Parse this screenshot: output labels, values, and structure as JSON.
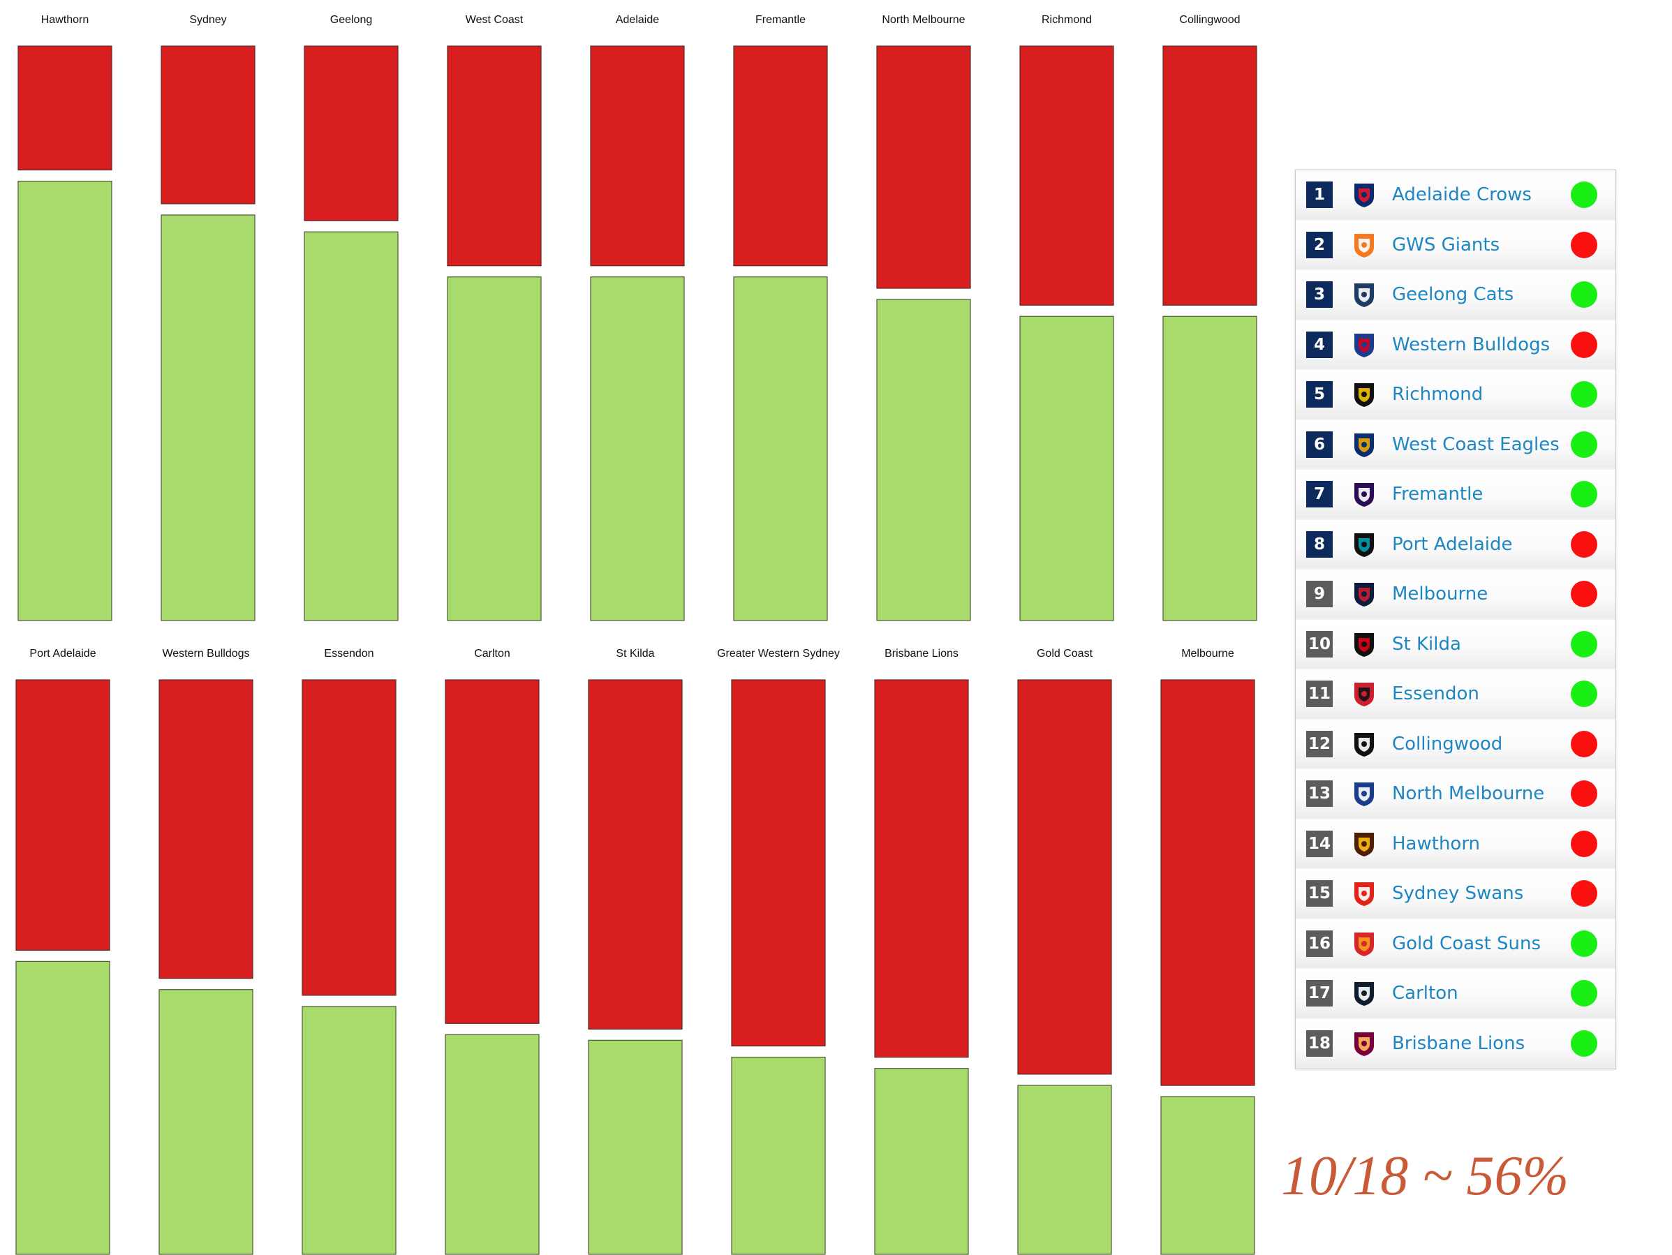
{
  "chart_data": {
    "type": "bar",
    "subtype": "stacked-100-percent",
    "title": "",
    "xlabel": "",
    "ylabel": "",
    "ylim": [
      0,
      100
    ],
    "grid": false,
    "legend": "none",
    "series_colors": {
      "red": "#d81e1e",
      "green": "#a8da6c"
    },
    "categories": [
      "Hawthorn",
      "Sydney",
      "Geelong",
      "West Coast",
      "Adelaide",
      "Fremantle",
      "North Melbourne",
      "Richmond",
      "Collingwood",
      "Port Adelaide",
      "Western Bulldogs",
      "Essendon",
      "Carlton",
      "St Kilda",
      "Greater Western Sydney",
      "Brisbane Lions",
      "Gold Coast",
      "Melbourne"
    ],
    "series": [
      {
        "name": "red",
        "values": [
          22,
          28,
          31,
          39,
          39,
          39,
          43,
          46,
          46,
          48,
          53,
          56,
          61,
          62,
          65,
          67,
          70,
          72
        ]
      },
      {
        "name": "green",
        "values": [
          78,
          72,
          69,
          61,
          61,
          61,
          57,
          54,
          54,
          52,
          47,
          44,
          39,
          38,
          35,
          33,
          30,
          28
        ]
      }
    ]
  },
  "ladder": {
    "colors": {
      "top_rank_bg": "#0d2a5c",
      "bottom_rank_bg": "#5c5c5c",
      "team_text": "#1e86c2",
      "dot_green": "#19ef14",
      "dot_red": "#fb1010"
    },
    "rows": [
      {
        "rank": "1",
        "team": "Adelaide Crows",
        "status": "green",
        "logo": "crow-icon"
      },
      {
        "rank": "2",
        "team": "GWS Giants",
        "status": "red",
        "logo": "gws-icon"
      },
      {
        "rank": "3",
        "team": "Geelong Cats",
        "status": "green",
        "logo": "cat-icon"
      },
      {
        "rank": "4",
        "team": "Western Bulldogs",
        "status": "red",
        "logo": "bulldog-icon"
      },
      {
        "rank": "5",
        "team": "Richmond",
        "status": "green",
        "logo": "tiger-icon"
      },
      {
        "rank": "6",
        "team": "West Coast Eagles",
        "status": "green",
        "logo": "eagle-icon"
      },
      {
        "rank": "7",
        "team": "Fremantle",
        "status": "green",
        "logo": "anchor-icon"
      },
      {
        "rank": "8",
        "team": "Port Adelaide",
        "status": "red",
        "logo": "power-icon"
      },
      {
        "rank": "9",
        "team": "Melbourne",
        "status": "red",
        "logo": "demon-icon"
      },
      {
        "rank": "10",
        "team": "St Kilda",
        "status": "green",
        "logo": "saints-icon"
      },
      {
        "rank": "11",
        "team": "Essendon",
        "status": "green",
        "logo": "bomber-icon"
      },
      {
        "rank": "12",
        "team": "Collingwood",
        "status": "red",
        "logo": "magpie-icon"
      },
      {
        "rank": "13",
        "team": "North Melbourne",
        "status": "red",
        "logo": "kangaroo-icon"
      },
      {
        "rank": "14",
        "team": "Hawthorn",
        "status": "red",
        "logo": "hawk-icon"
      },
      {
        "rank": "15",
        "team": "Sydney Swans",
        "status": "red",
        "logo": "swan-icon"
      },
      {
        "rank": "16",
        "team": "Gold Coast Suns",
        "status": "green",
        "logo": "sun-icon"
      },
      {
        "rank": "17",
        "team": "Carlton",
        "status": "green",
        "logo": "blues-icon"
      },
      {
        "rank": "18",
        "team": "Brisbane Lions",
        "status": "green",
        "logo": "lion-icon"
      }
    ]
  },
  "summary": {
    "accuracy_text": "10/18 ~ 56%",
    "color": "#c85a38"
  }
}
